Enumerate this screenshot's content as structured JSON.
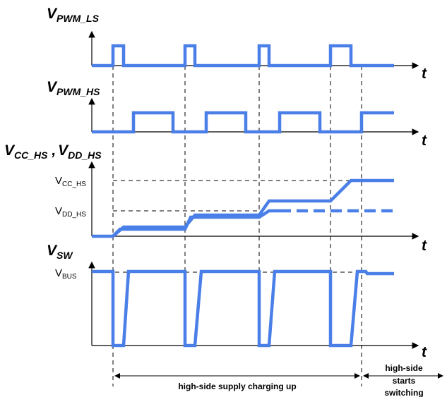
{
  "signals": {
    "pwm_ls": {
      "main": "V",
      "sub": "PWM_LS"
    },
    "pwm_hs": {
      "main": "V",
      "sub": "PWM_HS"
    },
    "cc_dd": {
      "main1": "V",
      "sub1": "CC_HS",
      "sep": " ,",
      "main2": "V",
      "sub2": "DD_HS"
    },
    "sw": {
      "main": "V",
      "sub": "SW"
    }
  },
  "time_label": "t",
  "levels": {
    "vcc": {
      "main": "V",
      "sub": "CC_HS"
    },
    "vdd": {
      "main": "V",
      "sub": "DD_HS"
    },
    "vbus": {
      "main": "V",
      "sub": "BUS"
    }
  },
  "annotations": {
    "charging": "high-side supply charging up",
    "switching_line1": "high-side",
    "switching_line2": "starts",
    "switching_line3": "switching"
  },
  "colors": {
    "waveform": "#4a7fe8",
    "axis": "#000000"
  }
}
